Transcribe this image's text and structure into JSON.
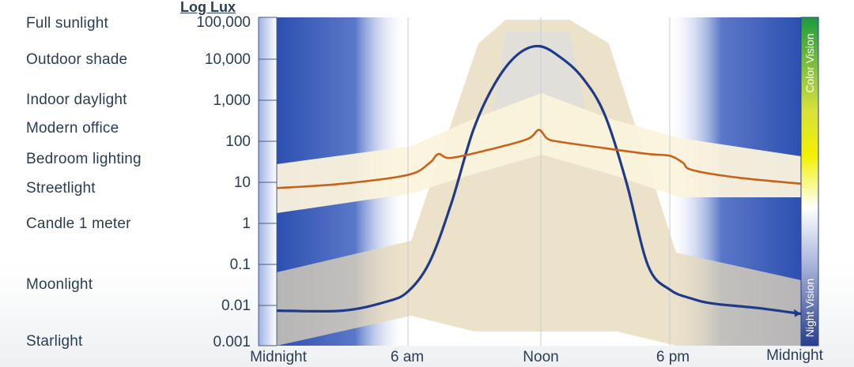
{
  "chart_data": {
    "type": "line",
    "ylabel": "Log Lux",
    "y_scale": "log",
    "ylim": [
      0.001,
      100000
    ],
    "y_ticks": [
      "100,000",
      "10,000",
      "1,000",
      "100",
      "10",
      "1",
      "0.1",
      "0.01",
      "0.001"
    ],
    "x_ticks": [
      "Midnight",
      "6 am",
      "Noon",
      "6 pm",
      "Midnight"
    ],
    "x_range_hours": [
      0,
      24
    ],
    "light_levels": [
      {
        "label": "Full sunlight"
      },
      {
        "label": "Outdoor shade"
      },
      {
        "label": "Indoor daylight"
      },
      {
        "label": "Modern office"
      },
      {
        "label": "Bedroom lighting"
      },
      {
        "label": "Streetlight"
      },
      {
        "label": "Candle 1 meter"
      },
      {
        "label": "Moonlight"
      },
      {
        "label": "Starlight"
      }
    ],
    "vision_bar": {
      "top_label": "Color Vision",
      "bottom_label": "Night Vision"
    },
    "series": [
      {
        "color": "#1f3a8a",
        "x": [
          0,
          3,
          5,
          6,
          7,
          8,
          9,
          10,
          11,
          12,
          13,
          14,
          15,
          16,
          17,
          18,
          19,
          20,
          22,
          24
        ],
        "y": [
          0.006,
          0.006,
          0.01,
          0.018,
          0.1,
          3,
          200,
          3000,
          15000,
          25000,
          13000,
          4000,
          500,
          10,
          0.08,
          0.02,
          0.012,
          0.009,
          0.007,
          0.005
        ]
      },
      {
        "color": "#c8621b",
        "x": [
          0,
          3,
          6,
          7,
          7.4,
          8,
          10,
          11.5,
          12,
          12.4,
          13,
          15,
          17,
          18,
          18.6,
          19,
          21,
          24
        ],
        "y": [
          7,
          9,
          15,
          30,
          50,
          40,
          70,
          120,
          200,
          120,
          100,
          70,
          50,
          45,
          30,
          20,
          13,
          9
        ]
      }
    ]
  }
}
